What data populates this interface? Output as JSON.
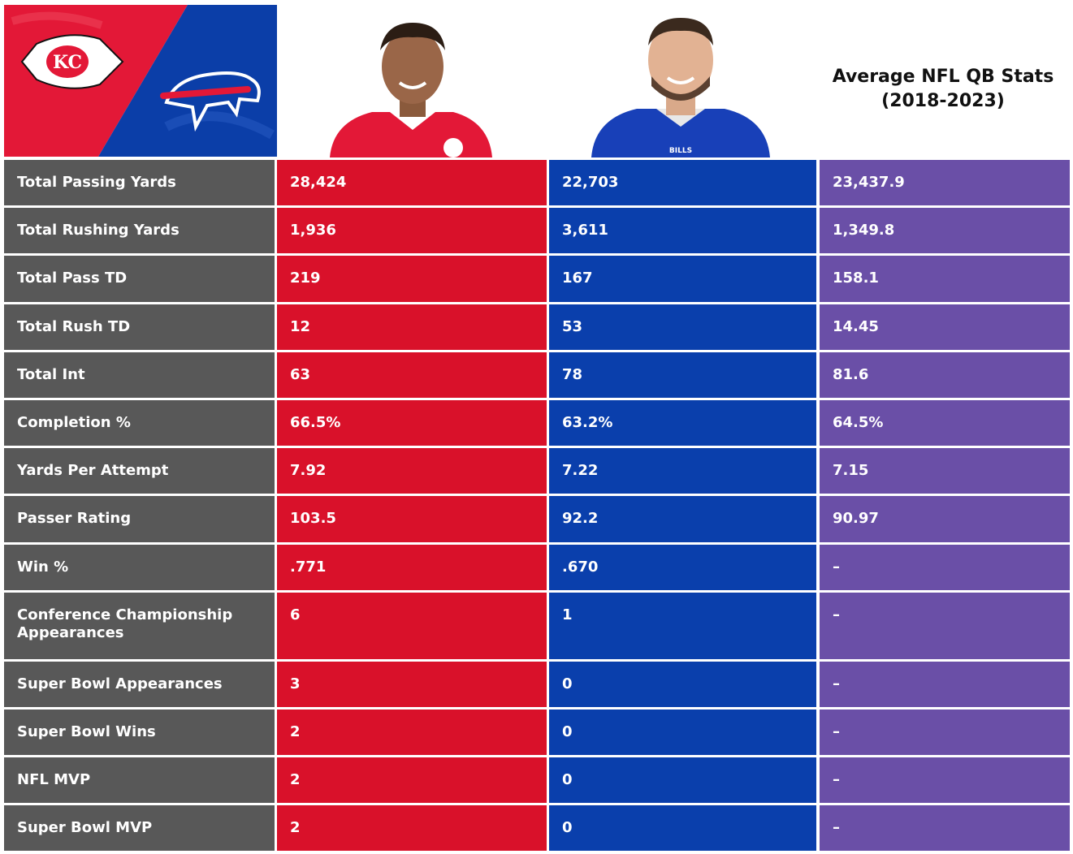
{
  "header": {
    "avg_title_line1": "Average NFL QB Stats",
    "avg_title_line2": "(2018-2023)"
  },
  "logos": {
    "left_team_icon": "chiefs-arrowhead-logo",
    "right_team_icon": "bills-buffalo-logo",
    "left_color": "#e31837",
    "right_color": "#0b3ea8"
  },
  "players": {
    "left_portrait": "mahomes-portrait",
    "right_portrait": "allen-portrait"
  },
  "colors": {
    "label_bg": "#585858",
    "kc_bg": "#d9112a",
    "buf_bg": "#0a3fac",
    "avg_bg": "#6a4fa7"
  },
  "rows": [
    {
      "label": "Total Passing Yards",
      "kc": "28,424",
      "buf": "22,703",
      "avg": "23,437.9"
    },
    {
      "label": "Total Rushing Yards",
      "kc": "1,936",
      "buf": "3,611",
      "avg": "1,349.8"
    },
    {
      "label": "Total Pass TD",
      "kc": "219",
      "buf": "167",
      "avg": "158.1"
    },
    {
      "label": "Total Rush TD",
      "kc": "12",
      "buf": "53",
      "avg": "14.45"
    },
    {
      "label": "Total Int",
      "kc": "63",
      "buf": "78",
      "avg": "81.6"
    },
    {
      "label": "Completion %",
      "kc": "66.5%",
      "buf": "63.2%",
      "avg": "64.5%"
    },
    {
      "label": "Yards Per Attempt",
      "kc": "7.92",
      "buf": "7.22",
      "avg": "7.15"
    },
    {
      "label": "Passer Rating",
      "kc": "103.5",
      "buf": "92.2",
      "avg": "90.97"
    },
    {
      "label": "Win %",
      "kc": ".771",
      "buf": ".670",
      "avg": "–"
    },
    {
      "label": "Conference Championship Appearances",
      "kc": "6",
      "buf": "1",
      "avg": "–"
    },
    {
      "label": "Super Bowl Appearances",
      "kc": "3",
      "buf": "0",
      "avg": "–"
    },
    {
      "label": "Super Bowl Wins",
      "kc": "2",
      "buf": "0",
      "avg": "–"
    },
    {
      "label": "NFL MVP",
      "kc": "2",
      "buf": "0",
      "avg": "–"
    },
    {
      "label": "Super Bowl MVP",
      "kc": "2",
      "buf": "0",
      "avg": "–"
    }
  ]
}
